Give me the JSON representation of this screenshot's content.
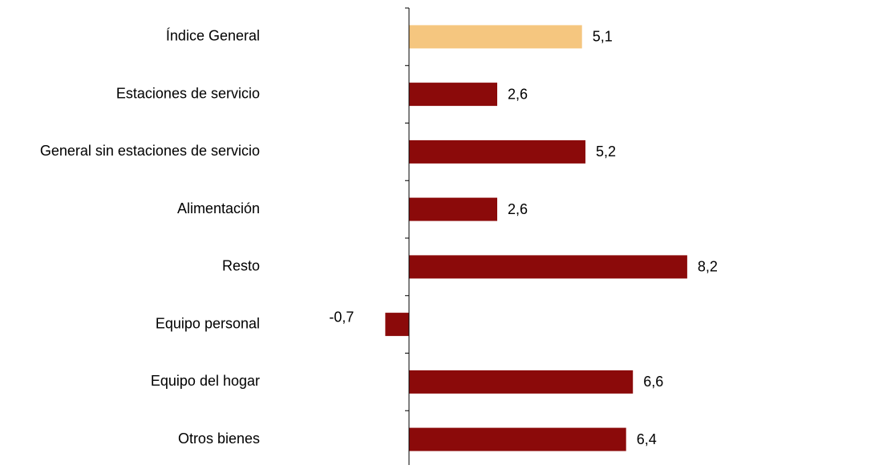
{
  "chart_data": {
    "type": "bar",
    "orientation": "horizontal",
    "categories": [
      "Índice General",
      "Estaciones de servicio",
      "General sin estaciones de servicio",
      "Alimentación",
      "Resto",
      "Equipo personal",
      "Equipo del hogar",
      "Otros bienes"
    ],
    "values": [
      5.1,
      2.6,
      5.2,
      2.6,
      8.2,
      -0.7,
      6.6,
      6.4
    ],
    "value_labels": [
      "5,1",
      "2,6",
      "5,2",
      "2,6",
      "8,2",
      "-0,7",
      "6,6",
      "6,4"
    ],
    "title": "",
    "xlabel": "",
    "ylabel": "",
    "xlim": [
      -0.7,
      8.2
    ],
    "grid": false,
    "legend": "none",
    "colors": {
      "highlight": "#F5C67F",
      "default": "#8B0A0A",
      "axis": "#000000"
    },
    "highlight_index": 0
  }
}
